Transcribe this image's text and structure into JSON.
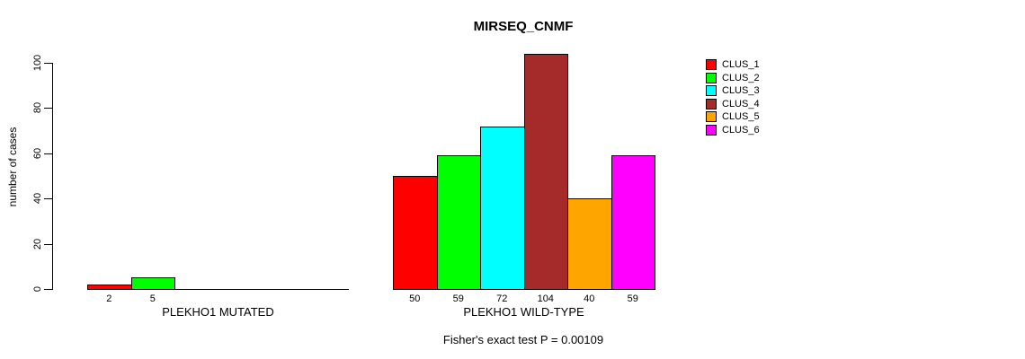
{
  "figure": {
    "title": "MIRSEQ_CNMF",
    "ylabel": "number of cases",
    "footer": "Fisher's exact test P = 0.00109"
  },
  "legend": {
    "items": [
      {
        "label": "CLUS_1",
        "color": "#FF0000"
      },
      {
        "label": "CLUS_2",
        "color": "#00FF00"
      },
      {
        "label": "CLUS_3",
        "color": "#00FFFF"
      },
      {
        "label": "CLUS_4",
        "color": "#A52A2A"
      },
      {
        "label": "CLUS_5",
        "color": "#FFA500"
      },
      {
        "label": "CLUS_6",
        "color": "#FF00FF"
      }
    ]
  },
  "chart_data": {
    "type": "bar",
    "title": "MIRSEQ_CNMF",
    "ylabel": "number of cases",
    "xlabel": "",
    "ylim": [
      0,
      100
    ],
    "yticks": [
      0,
      20,
      40,
      60,
      80,
      100
    ],
    "categories": [
      "CLUS_1",
      "CLUS_2",
      "CLUS_3",
      "CLUS_4",
      "CLUS_5",
      "CLUS_6"
    ],
    "colors": [
      "#FF0000",
      "#00FF00",
      "#00FFFF",
      "#A52A2A",
      "#FFA500",
      "#FF00FF"
    ],
    "groups": [
      {
        "label": "PLEKHO1 MUTATED",
        "values": [
          2,
          5,
          0,
          0,
          0,
          0
        ]
      },
      {
        "label": "PLEKHO1 WILD-TYPE",
        "values": [
          50,
          59,
          72,
          104,
          40,
          59
        ]
      }
    ],
    "annotation": "Fisher's exact test P = 0.00109",
    "legend_position": "right",
    "grid": false
  }
}
